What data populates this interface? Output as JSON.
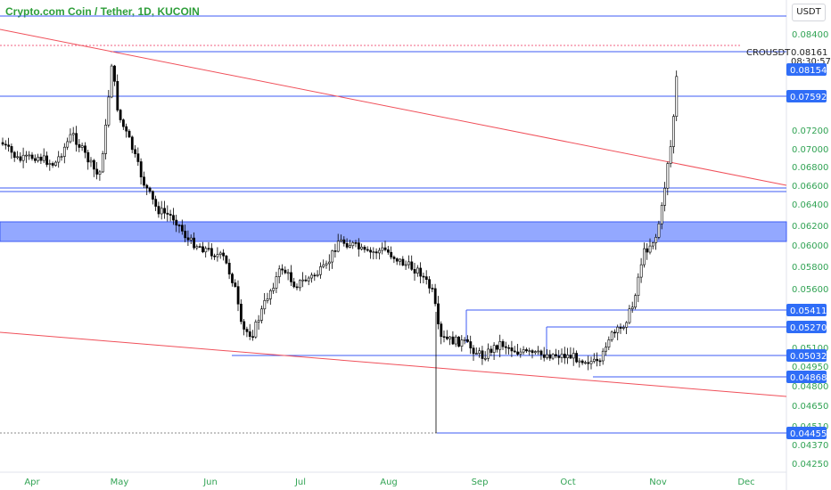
{
  "header": {
    "title": "Crypto.com Coin / Tether, 1D, KUCOIN"
  },
  "price_axis": {
    "currency_button": "USDT"
  },
  "chart_data": {
    "type": "candlestick",
    "symbol": "CROUSDT",
    "current_price": "0.08161",
    "countdown": "08:30:57",
    "y_ticks": [
      "0.08400",
      "0.07200",
      "0.07000",
      "0.06800",
      "0.06600",
      "0.06400",
      "0.06200",
      "0.06000",
      "0.05800",
      "0.05600",
      "0.05100",
      "0.04950",
      "0.04800",
      "0.04650",
      "0.04510",
      "0.04370",
      "0.04250"
    ],
    "x_ticks": [
      "Apr",
      "May",
      "Jun",
      "Jul",
      "Aug",
      "Sep",
      "Oct",
      "Nov",
      "Dec"
    ],
    "price_tags": [
      {
        "value": "0.08154"
      },
      {
        "value": "0.07592"
      },
      {
        "value": "0.05411"
      },
      {
        "value": "0.05270"
      },
      {
        "value": "0.05032"
      },
      {
        "value": "0.04868"
      },
      {
        "value": "0.04455"
      }
    ],
    "colors": {
      "horizontal_lines": "#3e5bf5",
      "trend_lines": "#f0505a",
      "zone_fill": "#93a8ff",
      "candles": "#000000",
      "axis_text": "#31a354",
      "tag_bg": "#2f6df7"
    }
  }
}
